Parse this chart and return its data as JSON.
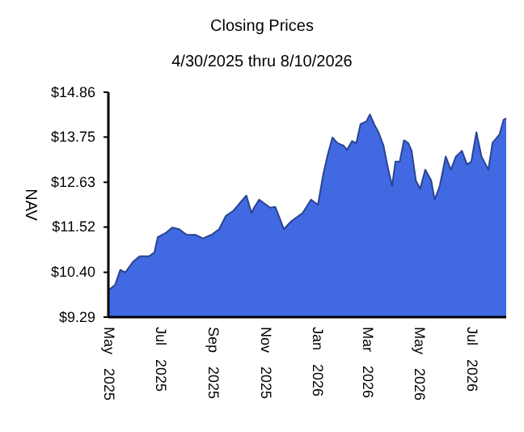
{
  "chart_data": {
    "type": "area",
    "title": "Closing Prices",
    "subtitle": "4/30/2025 thru 8/10/2026",
    "ylabel": "NAV",
    "x": [
      "2025-05-01",
      "2025-05-08",
      "2025-05-14",
      "2025-05-20",
      "2025-05-29",
      "2025-06-06",
      "2025-06-17",
      "2025-06-23",
      "2025-06-27",
      "2025-07-06",
      "2025-07-14",
      "2025-07-22",
      "2025-07-31",
      "2025-08-10",
      "2025-08-19",
      "2025-08-29",
      "2025-09-07",
      "2025-09-15",
      "2025-09-24",
      "2025-10-02",
      "2025-10-09",
      "2025-10-15",
      "2025-10-18",
      "2025-10-24",
      "2025-11-06",
      "2025-11-12",
      "2025-11-22",
      "2025-12-01",
      "2025-12-14",
      "2025-12-24",
      "2026-01-01",
      "2026-01-07",
      "2026-01-12",
      "2026-01-18",
      "2026-01-24",
      "2026-01-31",
      "2026-02-04",
      "2026-02-10",
      "2026-02-15",
      "2026-02-20",
      "2026-02-27",
      "2026-03-03",
      "2026-03-08",
      "2026-03-13",
      "2026-03-19",
      "2026-03-24",
      "2026-03-29",
      "2026-04-02",
      "2026-04-07",
      "2026-04-12",
      "2026-04-17",
      "2026-04-21",
      "2026-04-26",
      "2026-05-01",
      "2026-05-07",
      "2026-05-14",
      "2026-05-18",
      "2026-05-24",
      "2026-05-31",
      "2026-06-06",
      "2026-06-12",
      "2026-06-19",
      "2026-06-25",
      "2026-06-30",
      "2026-07-06",
      "2026-07-12",
      "2026-07-20",
      "2026-07-25",
      "2026-08-02",
      "2026-08-07",
      "2026-08-10"
    ],
    "series": [
      {
        "color": "#4169e1",
        "values": [
          9.97,
          10.09,
          10.46,
          10.4,
          10.66,
          10.8,
          10.8,
          10.89,
          11.27,
          11.37,
          11.51,
          11.47,
          11.33,
          11.33,
          11.24,
          11.33,
          11.47,
          11.8,
          11.93,
          12.13,
          12.3,
          11.87,
          12.0,
          12.2,
          12.0,
          12.02,
          11.47,
          11.67,
          11.87,
          12.2,
          12.07,
          12.8,
          13.27,
          13.74,
          13.6,
          13.54,
          13.43,
          13.65,
          13.6,
          14.07,
          14.14,
          14.31,
          14.07,
          13.87,
          13.54,
          13.0,
          12.54,
          13.14,
          13.14,
          13.67,
          13.6,
          13.41,
          12.67,
          12.47,
          12.94,
          12.67,
          12.2,
          12.54,
          13.27,
          12.94,
          13.27,
          13.41,
          13.07,
          13.14,
          13.87,
          13.27,
          12.94,
          13.61,
          13.81,
          14.18,
          14.21
        ]
      }
    ],
    "xlim": [
      "2025-04-30",
      "2026-08-10"
    ],
    "xticks": [
      {
        "value": "2025-05-01",
        "label": "May 2025"
      },
      {
        "value": "2025-07-01",
        "label": "Jul 2025"
      },
      {
        "value": "2025-09-01",
        "label": "Sep 2025"
      },
      {
        "value": "2025-11-01",
        "label": "Nov 2025"
      },
      {
        "value": "2026-01-01",
        "label": "Jan 2026"
      },
      {
        "value": "2026-03-01",
        "label": "Mar 2026"
      },
      {
        "value": "2026-05-01",
        "label": "May 2026"
      },
      {
        "value": "2026-07-01",
        "label": "Jul 2026"
      }
    ],
    "ylim": [
      9.29,
      14.86
    ],
    "yticks": [
      {
        "value": 9.29,
        "label": "$9.29"
      },
      {
        "value": 10.4,
        "label": "$10.40"
      },
      {
        "value": 11.52,
        "label": "$11.52"
      },
      {
        "value": 12.63,
        "label": "$12.63"
      },
      {
        "value": 13.75,
        "label": "$13.75"
      },
      {
        "value": 14.86,
        "label": "$14.86"
      }
    ],
    "grid": false
  }
}
